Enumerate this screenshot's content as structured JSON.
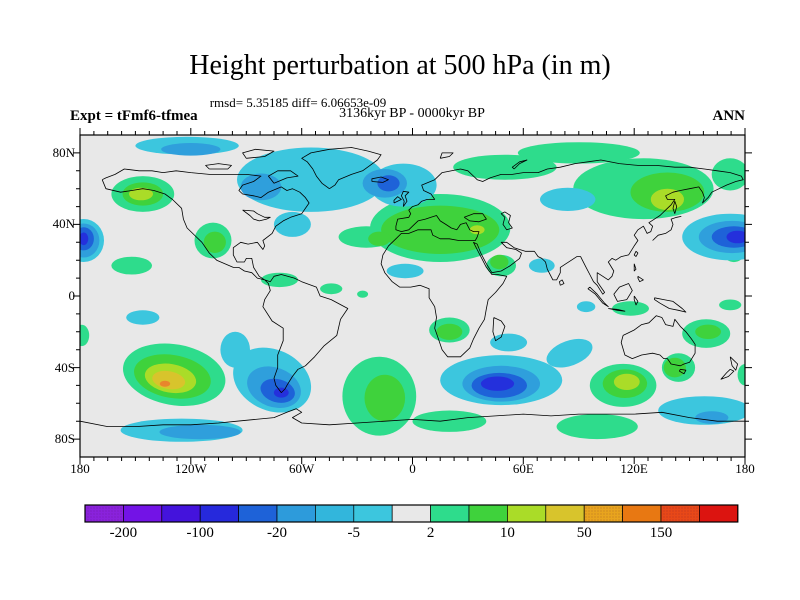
{
  "header": {
    "title": "Height perturbation at 500 hPa (in m)",
    "stats_line": "rmsd= 5.35185 diff= 6.06653e-09",
    "period_line": "3136kyr BP - 0000kyr BP",
    "experiment_label": "Expt = tFmf6-tfmea",
    "season_label": "ANN"
  },
  "chart_data": {
    "type": "heatmap",
    "subtype": "filled-contour world map, equirectangular projection, 90N-90S / 180W-180E",
    "variable": "Height perturbation at 500 hPa (m)",
    "title": "Height perturbation at 500 hPa (in m)",
    "annotations": [
      "rmsd= 5.35185 diff= 6.06653e-09",
      "3136kyr BP - 0000kyr BP",
      "Expt = tFmf6-tfmea",
      "ANN"
    ],
    "contour_levels": [
      -200,
      -150,
      -100,
      -50,
      -20,
      -10,
      -5,
      -2,
      2,
      5,
      10,
      20,
      50,
      100,
      150,
      200
    ],
    "palette": [
      "#8A22DC",
      "#7313E6",
      "#4413DC",
      "#2629DC",
      "#1E62D8",
      "#2D9BDB",
      "#32B6DC",
      "#3CC6DE",
      "#E8E8E8",
      "#2EDC8C",
      "#3FD23C",
      "#AADC28",
      "#D8C42C",
      "#E8A41E",
      "#E87812",
      "#E84818",
      "#DC1410"
    ],
    "textured_segments": [
      0,
      13,
      15
    ],
    "colorbar_labels": [
      "-200",
      "-100",
      "-20",
      "-5",
      "2",
      "10",
      "50",
      "150"
    ],
    "background_fill_band": "-2..2",
    "lat_axis": {
      "major_ticks": [
        {
          "label": "80N",
          "deg": 80
        },
        {
          "label": "40N",
          "deg": 40
        },
        {
          "label": "0",
          "deg": 0
        },
        {
          "label": "40S",
          "deg": -40
        },
        {
          "label": "80S",
          "deg": -80
        }
      ],
      "minor_step_deg": 10
    },
    "lon_axis": {
      "major_ticks": [
        {
          "label": "180",
          "deg": -180
        },
        {
          "label": "120W",
          "deg": -120
        },
        {
          "label": "60W",
          "deg": -60
        },
        {
          "label": "0",
          "deg": 0
        },
        {
          "label": "60E",
          "deg": 60
        },
        {
          "label": "120E",
          "deg": 120
        },
        {
          "label": "180",
          "deg": 180
        }
      ],
      "minor_step_deg": 7.5
    },
    "band_colors": {
      "-100..-50": "#2430DC",
      "-50..-20": "#1E62D8",
      "-20..-5": "#2F9FDC",
      "-5..-2": "#3CC6DE",
      "-2..2": "#E8E8E8",
      "2..5": "#2EDC8C",
      "5..10": "#3FD23C",
      "10..20": "#AADC28",
      "20..50": "#D8C42C",
      "50..100": "#E8862C"
    },
    "anomaly_columns": [
      "lon",
      "lat",
      "rx_deg",
      "ry_deg",
      "rotation_deg",
      "band"
    ],
    "anomalies": [
      [
        125,
        60,
        38,
        17,
        0,
        "2..5"
      ],
      [
        90,
        80,
        33,
        6,
        0,
        "2..5"
      ],
      [
        50,
        72,
        28,
        7,
        0,
        "2..5"
      ],
      [
        172,
        68,
        10,
        9,
        0,
        "2..5"
      ],
      [
        15,
        38,
        38,
        19,
        0,
        "2..5"
      ],
      [
        -25,
        33,
        15,
        6,
        0,
        "2..5"
      ],
      [
        48,
        17,
        8,
        6,
        0,
        "2..5"
      ],
      [
        -146,
        57,
        17,
        10,
        0,
        "2..5"
      ],
      [
        -108,
        31,
        10,
        10,
        0,
        "2..5"
      ],
      [
        -152,
        17,
        11,
        5,
        0,
        "2..5"
      ],
      [
        -72,
        9,
        10,
        4,
        0,
        "2..5"
      ],
      [
        -44,
        4,
        6,
        3,
        0,
        "2..5"
      ],
      [
        -27,
        1,
        3,
        2,
        0,
        "2..5"
      ],
      [
        20,
        -19,
        11,
        7,
        0,
        "2..5"
      ],
      [
        118,
        -7,
        10,
        4,
        0,
        "2..5"
      ],
      [
        172,
        -5,
        6,
        3,
        0,
        "2..5"
      ],
      [
        174,
        23,
        5,
        4,
        0,
        "2..5"
      ],
      [
        159,
        -21,
        13,
        8,
        0,
        "2..5"
      ],
      [
        144,
        -40,
        9,
        8,
        0,
        "2..5"
      ],
      [
        -129,
        -44,
        28,
        17,
        10,
        "2..5"
      ],
      [
        -18,
        -56,
        20,
        22,
        0,
        "2..5"
      ],
      [
        114,
        -50,
        18,
        12,
        0,
        "2..5"
      ],
      [
        20,
        -70,
        20,
        6,
        0,
        "2..5"
      ],
      [
        100,
        -73,
        22,
        7,
        0,
        "2..5"
      ],
      [
        -179,
        -22,
        4,
        6,
        0,
        "2..5"
      ],
      [
        180,
        -44,
        4,
        6,
        0,
        "2..5"
      ],
      [
        138,
        58,
        20,
        11,
        0,
        "5..10"
      ],
      [
        15,
        37,
        32,
        13.5,
        0,
        "5..10"
      ],
      [
        47,
        19,
        5,
        4,
        0,
        "5..10"
      ],
      [
        -18,
        32,
        6,
        4,
        0,
        "5..10"
      ],
      [
        -146,
        57,
        11,
        6.5,
        0,
        "5..10"
      ],
      [
        -107,
        30,
        6,
        6,
        0,
        "5..10"
      ],
      [
        20,
        -20,
        7,
        4.5,
        0,
        "5..10"
      ],
      [
        -130,
        -45,
        21,
        12,
        10,
        "5..10"
      ],
      [
        -15,
        -57,
        11,
        13,
        0,
        "5..10"
      ],
      [
        115,
        -49,
        12,
        8,
        0,
        "5..10"
      ],
      [
        160,
        -20,
        7,
        4,
        0,
        "5..10"
      ],
      [
        142,
        -40,
        6,
        5.5,
        0,
        "5..10"
      ],
      [
        138,
        54,
        9,
        6,
        0,
        "10..20"
      ],
      [
        35,
        37,
        4,
        2.5,
        0,
        "10..20"
      ],
      [
        -147,
        57,
        6.5,
        3.5,
        0,
        "10..20"
      ],
      [
        -131,
        -46,
        14,
        8,
        10,
        "10..20"
      ],
      [
        116,
        -48,
        7,
        4.5,
        0,
        "10..20"
      ],
      [
        -132,
        -47,
        9,
        5,
        10,
        "20..50"
      ],
      [
        -134,
        -49,
        2.8,
        1.7,
        0,
        "50..100"
      ],
      [
        -122,
        84,
        28,
        5,
        0,
        "-5..-2"
      ],
      [
        -55,
        65,
        40,
        18,
        0,
        "-5..-2"
      ],
      [
        -5,
        62,
        18,
        12,
        0,
        "-5..-2"
      ],
      [
        -65,
        40,
        10,
        7,
        0,
        "-5..-2"
      ],
      [
        172,
        33,
        26,
        13,
        0,
        "-5..-2"
      ],
      [
        -178,
        31,
        11,
        12,
        0,
        "-5..-2"
      ],
      [
        84,
        54,
        15,
        6.5,
        0,
        "-5..-2"
      ],
      [
        70,
        17,
        7,
        4,
        0,
        "-5..-2"
      ],
      [
        -4,
        14,
        10,
        4,
        0,
        "-5..-2"
      ],
      [
        -146,
        -12,
        9,
        4,
        0,
        "-5..-2"
      ],
      [
        94,
        -6,
        5,
        3,
        0,
        "-5..-2"
      ],
      [
        48,
        -47,
        33,
        14,
        0,
        "-5..-2"
      ],
      [
        85,
        -32,
        13,
        7,
        -20,
        "-5..-2"
      ],
      [
        52,
        -26,
        10,
        5,
        0,
        "-5..-2"
      ],
      [
        -76,
        -47,
        22,
        17,
        25,
        "-5..-2"
      ],
      [
        -96,
        -30,
        8,
        10,
        0,
        "-5..-2"
      ],
      [
        158,
        -64,
        25,
        8,
        0,
        "-5..-2"
      ],
      [
        -125,
        -75,
        33,
        6.5,
        0,
        "-5..-2"
      ],
      [
        -120,
        82,
        16,
        3.5,
        0,
        "-20..-5"
      ],
      [
        -82,
        61,
        11,
        7.5,
        0,
        "-20..-5"
      ],
      [
        -15,
        63,
        12,
        8,
        0,
        "-20..-5"
      ],
      [
        173,
        33,
        18,
        9,
        0,
        "-20..-5"
      ],
      [
        -178,
        31,
        8.5,
        9.5,
        0,
        "-20..-5"
      ],
      [
        -75,
        -51,
        15,
        11,
        20,
        "-20..-5"
      ],
      [
        48,
        -49,
        21,
        10,
        0,
        "-20..-5"
      ],
      [
        -115,
        -76,
        22,
        4,
        0,
        "-20..-5"
      ],
      [
        162,
        -68,
        9,
        3.5,
        0,
        "-20..-5"
      ],
      [
        174,
        33,
        12,
        6,
        0,
        "-50..-20"
      ],
      [
        -178,
        32,
        5.5,
        6.5,
        0,
        "-50..-20"
      ],
      [
        -73,
        -53,
        9.5,
        6.5,
        15,
        "-50..-20"
      ],
      [
        47,
        -50,
        15,
        7,
        0,
        "-50..-20"
      ],
      [
        -13,
        63,
        6,
        4.5,
        0,
        "-50..-20"
      ],
      [
        176,
        33,
        6,
        3.5,
        0,
        "-100..-50"
      ],
      [
        -178,
        32,
        2.5,
        3.5,
        0,
        "-100..-50"
      ],
      [
        -71,
        -54,
        4,
        2.8,
        0,
        "-100..-50"
      ],
      [
        46,
        -49,
        9,
        4,
        0,
        "-100..-50"
      ]
    ]
  }
}
